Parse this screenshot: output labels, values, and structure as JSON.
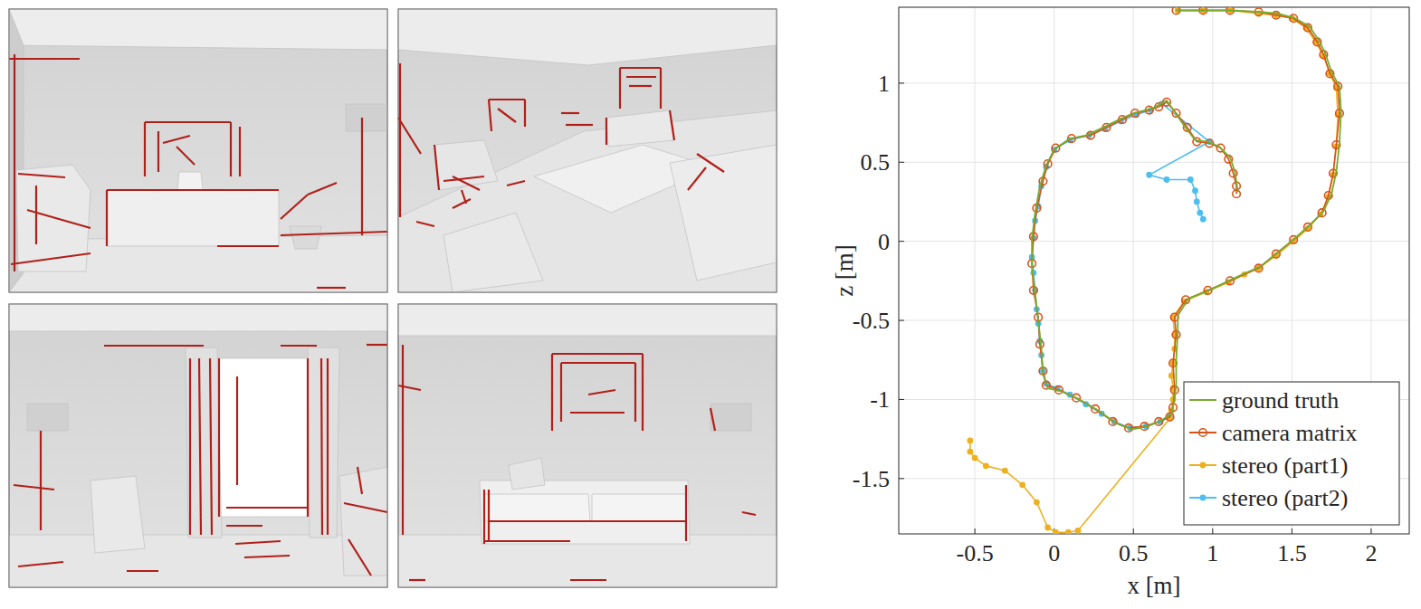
{
  "chart_data": {
    "type": "line",
    "x_label": "x [m]",
    "y_label": "z [m]",
    "xlim": [
      -0.98,
      2.24
    ],
    "ylim": [
      -1.85,
      1.48
    ],
    "xticks": [
      -0.5,
      0,
      0.5,
      1,
      1.5,
      2
    ],
    "yticks": [
      -1.5,
      -1,
      -0.5,
      0,
      0.5,
      1
    ],
    "grid": true,
    "legend": "lower right",
    "series": [
      {
        "name": "ground truth",
        "color": "#77ac30",
        "marker": "none",
        "line_style": "solid",
        "x": [
          1.16,
          1.14,
          1.11,
          1.04,
          0.97,
          0.89,
          0.82,
          0.76,
          0.71,
          0.62,
          0.5,
          0.41,
          0.31,
          0.2,
          0.1,
          0.0,
          -0.05,
          -0.09,
          -0.12,
          -0.14,
          -0.14,
          -0.12,
          -0.1,
          -0.08,
          -0.07,
          -0.04,
          0.05,
          0.16,
          0.28,
          0.39,
          0.49,
          0.59,
          0.68,
          0.74,
          0.76,
          0.77,
          0.77,
          0.78,
          0.78,
          0.85,
          0.98,
          1.12,
          1.3,
          1.41,
          1.52,
          1.61,
          1.7,
          1.75,
          1.78,
          1.8,
          1.81,
          1.8,
          1.75,
          1.71,
          1.67,
          1.61,
          1.52,
          1.41,
          1.3,
          1.12,
          0.95,
          0.77
        ],
        "values": [
          0.31,
          0.44,
          0.53,
          0.6,
          0.63,
          0.64,
          0.73,
          0.82,
          0.89,
          0.84,
          0.81,
          0.77,
          0.72,
          0.67,
          0.65,
          0.58,
          0.48,
          0.35,
          0.18,
          0.01,
          -0.16,
          -0.33,
          -0.5,
          -0.68,
          -0.84,
          -0.93,
          -0.95,
          -1.0,
          -1.07,
          -1.15,
          -1.19,
          -1.17,
          -1.13,
          -1.09,
          -1.0,
          -0.9,
          -0.75,
          -0.58,
          -0.47,
          -0.36,
          -0.31,
          -0.24,
          -0.16,
          -0.07,
          0.02,
          0.1,
          0.19,
          0.3,
          0.44,
          0.62,
          0.82,
          0.98,
          1.07,
          1.19,
          1.27,
          1.36,
          1.41,
          1.44,
          1.45,
          1.46,
          1.46,
          1.46
        ]
      },
      {
        "name": "camera matrix",
        "color": "#d95319",
        "marker": "open-circle",
        "line_style": "solid",
        "x": [
          1.15,
          1.15,
          1.13,
          1.1,
          1.05,
          0.98,
          0.9,
          0.84,
          0.77,
          0.71,
          0.66,
          0.6,
          0.51,
          0.43,
          0.33,
          0.23,
          0.11,
          0.01,
          -0.04,
          -0.07,
          -0.11,
          -0.13,
          -0.14,
          -0.13,
          -0.1,
          -0.09,
          -0.07,
          -0.05,
          0.03,
          0.14,
          0.26,
          0.37,
          0.47,
          0.57,
          0.66,
          0.73,
          0.75,
          0.76,
          0.75,
          0.77,
          0.76,
          0.83,
          0.97,
          1.11,
          1.29,
          1.4,
          1.51,
          1.6,
          1.69,
          1.73,
          1.76,
          1.78,
          1.8,
          1.79,
          1.74,
          1.7,
          1.66,
          1.6,
          1.51,
          1.4,
          1.29,
          1.11,
          0.94,
          0.77
        ],
        "values": [
          0.3,
          0.35,
          0.43,
          0.52,
          0.59,
          0.62,
          0.63,
          0.72,
          0.81,
          0.88,
          0.85,
          0.83,
          0.81,
          0.77,
          0.72,
          0.67,
          0.65,
          0.59,
          0.49,
          0.38,
          0.21,
          0.03,
          -0.14,
          -0.31,
          -0.48,
          -0.65,
          -0.82,
          -0.91,
          -0.94,
          -0.99,
          -1.06,
          -1.14,
          -1.18,
          -1.17,
          -1.14,
          -1.11,
          -1.05,
          -0.94,
          -0.77,
          -0.59,
          -0.48,
          -0.37,
          -0.31,
          -0.25,
          -0.17,
          -0.08,
          0.01,
          0.09,
          0.18,
          0.29,
          0.43,
          0.61,
          0.81,
          0.98,
          1.06,
          1.18,
          1.26,
          1.35,
          1.41,
          1.43,
          1.45,
          1.46,
          1.46,
          1.46
        ]
      },
      {
        "name": "stereo (part1)",
        "color": "#edb120",
        "marker": "dot",
        "line_style": "solid",
        "x": [
          -0.53,
          -0.53,
          -0.5,
          -0.43,
          -0.31,
          -0.2,
          -0.11,
          -0.04,
          0.01,
          0.09,
          0.15,
          0.73,
          0.74,
          0.75,
          0.75,
          0.74,
          0.75,
          0.76,
          0.76,
          0.75,
          0.82,
          0.96,
          1.1,
          1.2,
          1.29,
          1.4,
          1.51,
          1.6,
          1.68,
          1.73,
          1.76,
          1.78,
          1.79,
          1.78,
          1.74,
          1.7,
          1.65,
          1.59,
          1.5,
          1.4,
          1.29,
          1.11,
          0.94,
          0.78
        ],
        "values": [
          -1.26,
          -1.33,
          -1.37,
          -1.42,
          -1.45,
          -1.54,
          -1.65,
          -1.81,
          -1.84,
          -1.84,
          -1.83,
          -1.12,
          -1.07,
          -1.0,
          -0.93,
          -0.85,
          -0.77,
          -0.68,
          -0.59,
          -0.48,
          -0.38,
          -0.32,
          -0.26,
          -0.21,
          -0.17,
          -0.09,
          0.0,
          0.08,
          0.17,
          0.28,
          0.42,
          0.6,
          0.8,
          0.97,
          1.06,
          1.17,
          1.26,
          1.35,
          1.41,
          1.43,
          1.44,
          1.46,
          1.46,
          1.46
        ]
      },
      {
        "name": "stereo (part2)",
        "color": "#4dbeee",
        "marker": "dot",
        "line_style": "solid",
        "x": [
          0.73,
          0.67,
          0.58,
          0.48,
          0.38,
          0.3,
          0.2,
          0.1,
          0.02,
          -0.05,
          -0.07,
          -0.08,
          -0.09,
          -0.1,
          -0.11,
          -0.12,
          -0.13,
          -0.14,
          -0.13,
          -0.12,
          -0.1,
          -0.08,
          -0.05,
          0.0,
          0.1,
          0.22,
          0.32,
          0.42,
          0.52,
          0.61,
          0.68,
          0.98,
          0.6,
          0.71,
          0.86,
          0.89,
          0.9,
          0.92,
          0.94
        ],
        "values": [
          -1.11,
          -1.14,
          -1.17,
          -1.18,
          -1.14,
          -1.09,
          -1.03,
          -0.97,
          -0.93,
          -0.9,
          -0.82,
          -0.72,
          -0.63,
          -0.52,
          -0.43,
          -0.31,
          -0.2,
          -0.1,
          0.02,
          0.13,
          0.22,
          0.35,
          0.47,
          0.58,
          0.64,
          0.67,
          0.71,
          0.76,
          0.8,
          0.83,
          0.87,
          0.63,
          0.42,
          0.39,
          0.39,
          0.32,
          0.25,
          0.18,
          0.14
        ]
      }
    ]
  }
}
